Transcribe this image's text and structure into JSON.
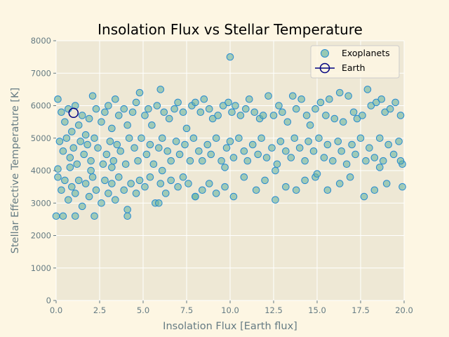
{
  "chart_data": {
    "type": "scatter",
    "title": "Insolation Flux vs Stellar Temperature",
    "xlabel": "Insolation Flux [Earth flux]",
    "ylabel": "Stellar Effective Temperature [K]",
    "xlim": [
      0,
      20
    ],
    "ylim": [
      0,
      8000
    ],
    "xticks": [
      0,
      2.5,
      5,
      7.5,
      10,
      12.5,
      15,
      17.5,
      20
    ],
    "xtick_labels": [
      "0.0",
      "2.5",
      "5.0",
      "7.5",
      "10.0",
      "12.5",
      "15.0",
      "17.5",
      "20.0"
    ],
    "yticks": [
      0,
      1000,
      2000,
      3000,
      4000,
      5000,
      6000,
      7000,
      8000
    ],
    "ytick_labels": [
      "0",
      "1000",
      "2000",
      "3000",
      "4000",
      "5000",
      "6000",
      "7000",
      "8000"
    ],
    "grid": true,
    "legend_position": "top-right",
    "colors": {
      "background": "#fdf6e3",
      "plot_background": "#eee8d5",
      "grid": "#ffffff",
      "exoplanet_fill": "#6cb6a0",
      "exoplanet_edge": "#268bd2",
      "earth_edge": "#000080"
    },
    "series": [
      {
        "name": "Exoplanets",
        "marker": "circle",
        "points": [
          [
            0.1,
            6200
          ],
          [
            0.3,
            5800
          ],
          [
            0.5,
            5500
          ],
          [
            0.7,
            5900
          ],
          [
            0.9,
            5200
          ],
          [
            1.1,
            6000
          ],
          [
            1.3,
            5400
          ],
          [
            1.5,
            5700
          ],
          [
            1.7,
            5100
          ],
          [
            1.9,
            5600
          ],
          [
            2.1,
            6300
          ],
          [
            2.3,
            5900
          ],
          [
            2.6,
            5500
          ],
          [
            2.8,
            5800
          ],
          [
            3.0,
            6000
          ],
          [
            3.2,
            5300
          ],
          [
            3.4,
            6200
          ],
          [
            3.6,
            5700
          ],
          [
            3.9,
            5900
          ],
          [
            4.1,
            5400
          ],
          [
            4.4,
            5800
          ],
          [
            4.6,
            6100
          ],
          [
            4.8,
            6400
          ],
          [
            5.1,
            5700
          ],
          [
            5.3,
            5900
          ],
          [
            5.5,
            5400
          ],
          [
            5.8,
            6000
          ],
          [
            6.0,
            6500
          ],
          [
            6.2,
            5800
          ],
          [
            6.5,
            5600
          ],
          [
            6.8,
            5900
          ],
          [
            7.0,
            6100
          ],
          [
            7.3,
            5800
          ],
          [
            7.5,
            5300
          ],
          [
            7.8,
            6000
          ],
          [
            8.0,
            6100
          ],
          [
            8.3,
            5800
          ],
          [
            8.5,
            6200
          ],
          [
            8.8,
            5900
          ],
          [
            9.0,
            5600
          ],
          [
            9.3,
            5700
          ],
          [
            9.6,
            6000
          ],
          [
            9.9,
            6100
          ],
          [
            10.1,
            5800
          ],
          [
            10.3,
            6000
          ],
          [
            10.6,
            5700
          ],
          [
            10.9,
            5900
          ],
          [
            11.1,
            6200
          ],
          [
            11.4,
            5800
          ],
          [
            11.7,
            5600
          ],
          [
            11.9,
            5700
          ],
          [
            12.2,
            6300
          ],
          [
            12.5,
            5700
          ],
          [
            12.8,
            6000
          ],
          [
            13.0,
            5800
          ],
          [
            13.3,
            5500
          ],
          [
            13.6,
            6300
          ],
          [
            13.8,
            5900
          ],
          [
            14.1,
            6200
          ],
          [
            14.4,
            5700
          ],
          [
            14.6,
            5400
          ],
          [
            14.9,
            5900
          ],
          [
            15.2,
            6100
          ],
          [
            15.5,
            5700
          ],
          [
            15.7,
            6200
          ],
          [
            16.0,
            5600
          ],
          [
            16.3,
            6400
          ],
          [
            16.5,
            5500
          ],
          [
            16.8,
            6300
          ],
          [
            17.1,
            5800
          ],
          [
            17.3,
            5600
          ],
          [
            17.6,
            5700
          ],
          [
            17.9,
            6500
          ],
          [
            18.1,
            6000
          ],
          [
            18.4,
            6100
          ],
          [
            18.7,
            6200
          ],
          [
            18.9,
            5800
          ],
          [
            19.2,
            5900
          ],
          [
            19.5,
            6100
          ],
          [
            19.8,
            5700
          ],
          [
            0.2,
            4900
          ],
          [
            0.4,
            4600
          ],
          [
            0.6,
            5000
          ],
          [
            0.8,
            4400
          ],
          [
            1.0,
            4700
          ],
          [
            1.2,
            4200
          ],
          [
            1.4,
            4900
          ],
          [
            1.6,
            4500
          ],
          [
            1.8,
            4800
          ],
          [
            2.0,
            4300
          ],
          [
            2.2,
            5000
          ],
          [
            2.4,
            4700
          ],
          [
            2.7,
            4200
          ],
          [
            2.9,
            4500
          ],
          [
            3.1,
            4900
          ],
          [
            3.3,
            4300
          ],
          [
            3.5,
            4800
          ],
          [
            3.7,
            4600
          ],
          [
            4.0,
            4200
          ],
          [
            4.2,
            5000
          ],
          [
            4.5,
            4700
          ],
          [
            4.7,
            4300
          ],
          [
            4.9,
            5000
          ],
          [
            5.2,
            4500
          ],
          [
            5.4,
            4800
          ],
          [
            5.6,
            4200
          ],
          [
            5.9,
            4700
          ],
          [
            6.1,
            5000
          ],
          [
            6.4,
            4600
          ],
          [
            6.6,
            4300
          ],
          [
            6.9,
            4900
          ],
          [
            7.1,
            4500
          ],
          [
            7.4,
            4800
          ],
          [
            7.7,
            4300
          ],
          [
            7.9,
            5000
          ],
          [
            8.2,
            4600
          ],
          [
            8.4,
            4300
          ],
          [
            8.7,
            4800
          ],
          [
            8.9,
            4500
          ],
          [
            9.2,
            5000
          ],
          [
            9.5,
            4300
          ],
          [
            9.8,
            4700
          ],
          [
            10.0,
            4900
          ],
          [
            10.2,
            4400
          ],
          [
            10.5,
            5000
          ],
          [
            10.8,
            4600
          ],
          [
            11.0,
            4300
          ],
          [
            11.3,
            4800
          ],
          [
            11.6,
            4500
          ],
          [
            11.8,
            5000
          ],
          [
            12.1,
            4400
          ],
          [
            12.4,
            4700
          ],
          [
            12.7,
            4200
          ],
          [
            12.9,
            4900
          ],
          [
            13.2,
            4600
          ],
          [
            13.5,
            4400
          ],
          [
            13.7,
            5000
          ],
          [
            14.0,
            4700
          ],
          [
            14.3,
            4300
          ],
          [
            14.5,
            4900
          ],
          [
            14.8,
            4600
          ],
          [
            15.1,
            5000
          ],
          [
            15.4,
            4400
          ],
          [
            15.6,
            4800
          ],
          [
            15.9,
            4300
          ],
          [
            16.2,
            4900
          ],
          [
            16.4,
            4600
          ],
          [
            16.7,
            4200
          ],
          [
            17.0,
            4800
          ],
          [
            17.2,
            4500
          ],
          [
            17.5,
            5000
          ],
          [
            17.8,
            4300
          ],
          [
            18.0,
            4700
          ],
          [
            18.3,
            4400
          ],
          [
            18.6,
            5000
          ],
          [
            18.8,
            4300
          ],
          [
            19.1,
            4800
          ],
          [
            19.4,
            4500
          ],
          [
            19.7,
            4900
          ],
          [
            19.9,
            4200
          ],
          [
            0.1,
            3800
          ],
          [
            0.3,
            3400
          ],
          [
            0.5,
            3700
          ],
          [
            0.7,
            3100
          ],
          [
            0.9,
            3500
          ],
          [
            1.1,
            3300
          ],
          [
            1.3,
            3700
          ],
          [
            1.5,
            2900
          ],
          [
            1.7,
            3600
          ],
          [
            1.9,
            3200
          ],
          [
            2.1,
            3800
          ],
          [
            2.3,
            3400
          ],
          [
            2.6,
            3000
          ],
          [
            2.8,
            3700
          ],
          [
            3.0,
            3300
          ],
          [
            3.2,
            3600
          ],
          [
            3.4,
            3100
          ],
          [
            3.6,
            3800
          ],
          [
            3.9,
            3400
          ],
          [
            4.1,
            2800
          ],
          [
            4.3,
            3600
          ],
          [
            4.6,
            3300
          ],
          [
            4.8,
            3700
          ],
          [
            5.1,
            3500
          ],
          [
            5.4,
            3800
          ],
          [
            5.7,
            3000
          ],
          [
            6.0,
            3600
          ],
          [
            6.3,
            3300
          ],
          [
            6.6,
            3700
          ],
          [
            7.0,
            3500
          ],
          [
            7.3,
            3800
          ],
          [
            7.6,
            3600
          ],
          [
            8.0,
            3200
          ],
          [
            8.4,
            3400
          ],
          [
            8.8,
            3600
          ],
          [
            9.2,
            3300
          ],
          [
            9.7,
            3500
          ],
          [
            10.2,
            3200
          ],
          [
            10.8,
            3800
          ],
          [
            11.5,
            3400
          ],
          [
            12.0,
            3700
          ],
          [
            12.6,
            3100
          ],
          [
            13.2,
            3500
          ],
          [
            13.8,
            3400
          ],
          [
            14.3,
            3700
          ],
          [
            14.9,
            3800
          ],
          [
            15.6,
            3400
          ],
          [
            16.3,
            3600
          ],
          [
            16.9,
            3800
          ],
          [
            17.7,
            3200
          ],
          [
            18.3,
            3400
          ],
          [
            19.0,
            3600
          ],
          [
            19.9,
            3500
          ],
          [
            0.0,
            2600
          ],
          [
            0.4,
            2600
          ],
          [
            1.1,
            2600
          ],
          [
            2.2,
            2600
          ],
          [
            4.1,
            2600
          ],
          [
            5.9,
            3000
          ],
          [
            8.0,
            3200
          ],
          [
            0.1,
            4050
          ],
          [
            0.8,
            4100
          ],
          [
            2.0,
            4000
          ],
          [
            3.2,
            4100
          ],
          [
            6.1,
            4000
          ],
          [
            9.7,
            4100
          ],
          [
            12.6,
            4000
          ],
          [
            15.0,
            3900
          ],
          [
            18.6,
            4100
          ],
          [
            19.8,
            4300
          ],
          [
            10.0,
            7500
          ]
        ]
      },
      {
        "name": "Earth",
        "marker": "circle-open-line",
        "points": [
          [
            1.0,
            5778
          ]
        ]
      }
    ]
  }
}
